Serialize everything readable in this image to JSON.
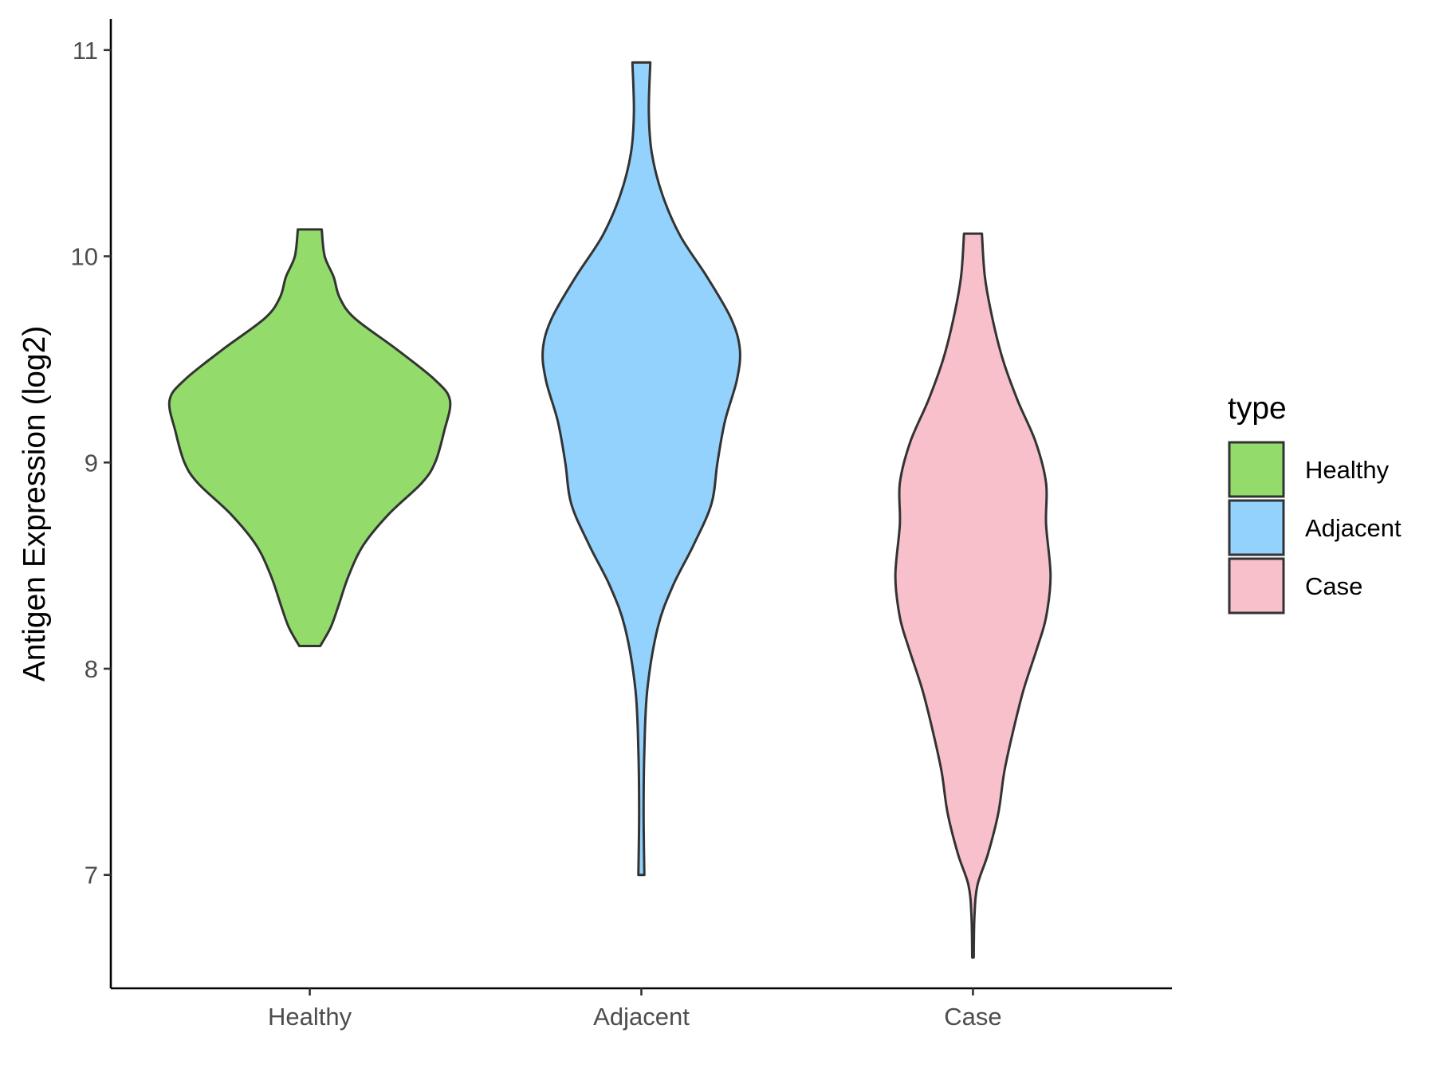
{
  "chart_data": {
    "type": "violin",
    "title": "",
    "xlabel": "",
    "ylabel": "Antigen Expression (log2)",
    "categories": [
      "Healthy",
      "Adjacent",
      "Case"
    ],
    "y_ticks": [
      7,
      8,
      9,
      10,
      11
    ],
    "ylim": [
      6.45,
      11.15
    ],
    "grid": false,
    "legend": {
      "title": "type",
      "position": "right",
      "entries": [
        "Healthy",
        "Adjacent",
        "Case"
      ]
    },
    "colors": {
      "Healthy": "#93DC6B",
      "Adjacent": "#92D2FD",
      "Case": "#F7C0CB",
      "outline": "#333333"
    },
    "series": [
      {
        "category": "Healthy",
        "min": 8.11,
        "max": 10.13,
        "density_profile": [
          {
            "y": 8.11,
            "w": 0.07
          },
          {
            "y": 8.2,
            "w": 0.14
          },
          {
            "y": 8.3,
            "w": 0.19
          },
          {
            "y": 8.45,
            "w": 0.26
          },
          {
            "y": 8.6,
            "w": 0.36
          },
          {
            "y": 8.75,
            "w": 0.53
          },
          {
            "y": 8.9,
            "w": 0.75
          },
          {
            "y": 9.0,
            "w": 0.84
          },
          {
            "y": 9.15,
            "w": 0.9
          },
          {
            "y": 9.3,
            "w": 0.94
          },
          {
            "y": 9.4,
            "w": 0.84
          },
          {
            "y": 9.55,
            "w": 0.58
          },
          {
            "y": 9.7,
            "w": 0.3
          },
          {
            "y": 9.8,
            "w": 0.2
          },
          {
            "y": 9.9,
            "w": 0.16
          },
          {
            "y": 10.0,
            "w": 0.1
          },
          {
            "y": 10.13,
            "w": 0.08
          }
        ]
      },
      {
        "category": "Adjacent",
        "min": 7.0,
        "max": 10.94,
        "density_profile": [
          {
            "y": 7.0,
            "w": 0.02
          },
          {
            "y": 7.3,
            "w": 0.015
          },
          {
            "y": 7.6,
            "w": 0.02
          },
          {
            "y": 7.9,
            "w": 0.04
          },
          {
            "y": 8.2,
            "w": 0.11
          },
          {
            "y": 8.4,
            "w": 0.21
          },
          {
            "y": 8.6,
            "w": 0.35
          },
          {
            "y": 8.8,
            "w": 0.47
          },
          {
            "y": 9.0,
            "w": 0.51
          },
          {
            "y": 9.2,
            "w": 0.56
          },
          {
            "y": 9.4,
            "w": 0.64
          },
          {
            "y": 9.55,
            "w": 0.66
          },
          {
            "y": 9.7,
            "w": 0.6
          },
          {
            "y": 9.9,
            "w": 0.44
          },
          {
            "y": 10.1,
            "w": 0.26
          },
          {
            "y": 10.3,
            "w": 0.14
          },
          {
            "y": 10.5,
            "w": 0.07
          },
          {
            "y": 10.7,
            "w": 0.05
          },
          {
            "y": 10.94,
            "w": 0.06
          }
        ]
      },
      {
        "category": "Case",
        "min": 6.6,
        "max": 10.11,
        "density_profile": [
          {
            "y": 6.6,
            "w": 0.005
          },
          {
            "y": 6.8,
            "w": 0.01
          },
          {
            "y": 6.95,
            "w": 0.03
          },
          {
            "y": 7.1,
            "w": 0.1
          },
          {
            "y": 7.3,
            "w": 0.17
          },
          {
            "y": 7.5,
            "w": 0.21
          },
          {
            "y": 7.7,
            "w": 0.27
          },
          {
            "y": 7.9,
            "w": 0.34
          },
          {
            "y": 8.1,
            "w": 0.43
          },
          {
            "y": 8.25,
            "w": 0.49
          },
          {
            "y": 8.45,
            "w": 0.52
          },
          {
            "y": 8.7,
            "w": 0.49
          },
          {
            "y": 8.9,
            "w": 0.49
          },
          {
            "y": 9.1,
            "w": 0.42
          },
          {
            "y": 9.3,
            "w": 0.3
          },
          {
            "y": 9.5,
            "w": 0.2
          },
          {
            "y": 9.7,
            "w": 0.13
          },
          {
            "y": 9.9,
            "w": 0.08
          },
          {
            "y": 10.11,
            "w": 0.06
          }
        ]
      }
    ]
  }
}
